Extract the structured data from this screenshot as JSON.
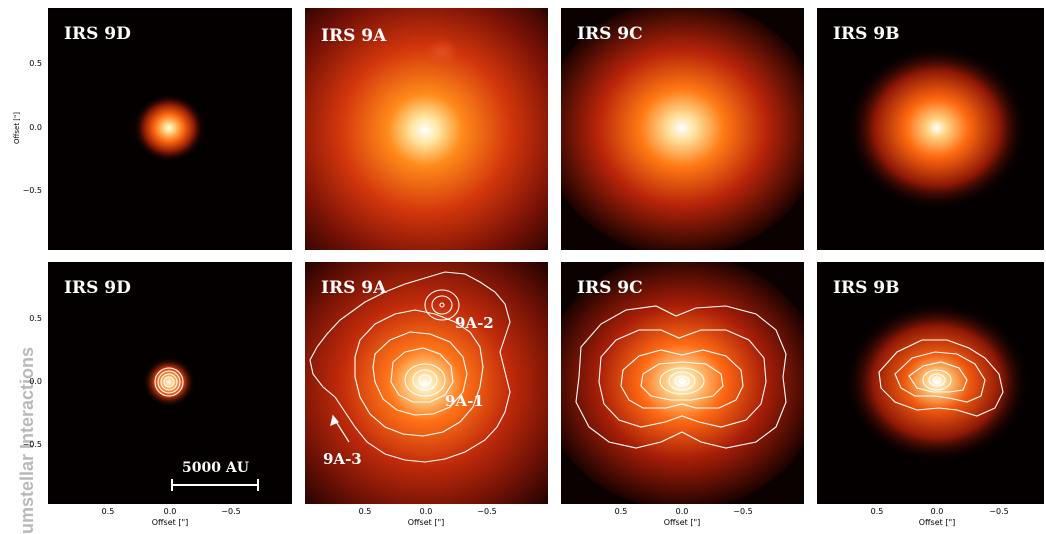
{
  "figure": {
    "panels_top": [
      {
        "label": "IRS 9D"
      },
      {
        "label": "IRS 9A"
      },
      {
        "label": "IRS 9C"
      },
      {
        "label": "IRS 9B"
      }
    ],
    "panels_bottom": [
      {
        "label": "IRS 9D"
      },
      {
        "label": "IRS 9A"
      },
      {
        "label": "IRS 9C"
      },
      {
        "label": "IRS 9B"
      }
    ],
    "annotations": {
      "a2": "9A-2",
      "a1": "9A-1",
      "a3": "9A-3"
    },
    "scale_bar": "5000 AU",
    "y_axis": {
      "label": "Offset [\"]",
      "ticks": [
        "0.5",
        "0.0",
        "−0.5"
      ]
    },
    "x_axis": {
      "label": "Offset [\"]",
      "ticks": [
        "0.5",
        "0.0",
        "−0.5"
      ]
    },
    "side_text": "umstellar Interactions",
    "colors": {
      "background": "#050000",
      "glow_core": "#ffffff",
      "glow_mid": "#ff8a1a",
      "glow_outer": "#b2200a",
      "contour": "#ffffff"
    }
  }
}
